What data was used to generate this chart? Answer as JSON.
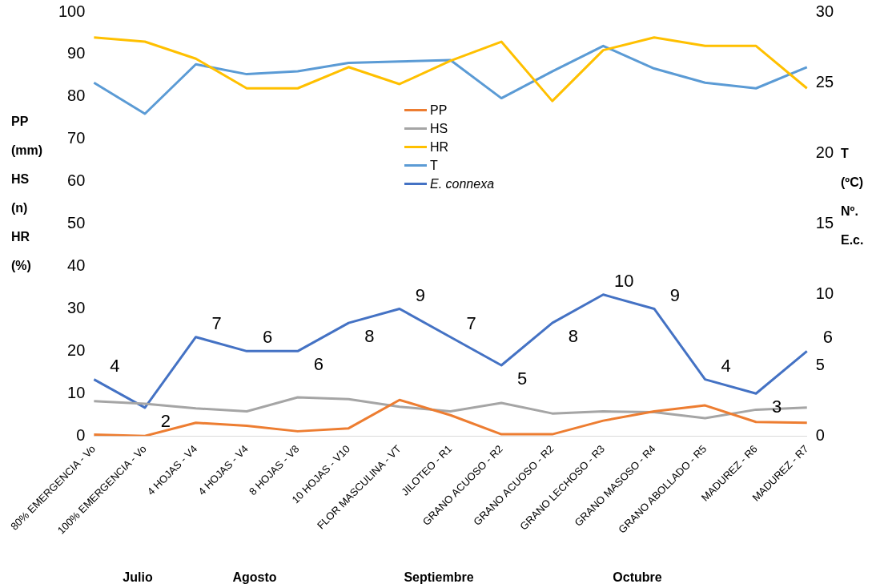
{
  "chart_data": {
    "type": "line",
    "categories": [
      "80% EMERGENCIA - Vo",
      "100% EMERGENCIA - Vo",
      "4 HOJAS - V4",
      "4 HOJAS - V4",
      "8 HOJAS - V8",
      "10 HOJAS - V10",
      "FLOR MASCULINA - VT",
      "JILOTEO - R1",
      "GRANO ACUOSO - R2",
      "GRANO ACUOSO - R2",
      "GRANO LECHOSO - R3",
      "GRANO MASOSO - R4",
      "GRANO ABOLLADO - R5",
      "MADUREZ - R6",
      "MADUREZ - R7"
    ],
    "series": [
      {
        "name": "PP",
        "color": "#ed7d31",
        "values": [
          0.3,
          0,
          3.1,
          2.4,
          1.1,
          1.8,
          8.5,
          4.9,
          0.4,
          0.4,
          3.6,
          5.8,
          7.2,
          3.3,
          3.1
        ]
      },
      {
        "name": "HS",
        "color": "#a5a5a5",
        "values": [
          8.2,
          7.6,
          6.5,
          5.8,
          9.1,
          8.7,
          6.9,
          5.8,
          7.8,
          5.3,
          5.8,
          5.6,
          4.2,
          6.2,
          6.7
        ]
      },
      {
        "name": "HR",
        "color": "#ffc000",
        "values": [
          94,
          93,
          89,
          82,
          82,
          87,
          83,
          88.5,
          93,
          79,
          91,
          94,
          92,
          92,
          82
        ]
      },
      {
        "name": "T",
        "color": "#5b9bd5",
        "axis": "y2",
        "values": [
          25.0,
          22.8,
          26.3,
          25.6,
          25.8,
          26.4,
          26.5,
          26.6,
          23.9,
          25.8,
          27.6,
          26.0,
          25.0,
          24.6,
          26.1
        ]
      },
      {
        "name": "E. connexa",
        "color": "#4472c4",
        "axis": "y2",
        "values": [
          4,
          2,
          7,
          6,
          6,
          8,
          9,
          7,
          5,
          8,
          10,
          9,
          4,
          3,
          6
        ],
        "value_labels": [
          "4",
          "2",
          "7",
          "6",
          "6",
          "8",
          "9",
          "7",
          "5",
          "8",
          "10",
          "9",
          "4",
          "3",
          "6"
        ]
      }
    ],
    "ylabel": "PP (mm) HS (n) HR (%)",
    "y2label": "T (ºC) Nº. E.c.",
    "ylim": [
      0,
      100
    ],
    "yticks": [
      0,
      10,
      20,
      30,
      40,
      50,
      60,
      70,
      80,
      90,
      100
    ],
    "y2lim": [
      0,
      30
    ],
    "y2ticks": [
      0,
      5,
      10,
      15,
      20,
      25,
      30
    ],
    "grid": false,
    "legend": "top",
    "marker": "none",
    "line_style": "solid",
    "annotations": [
      "Julio",
      "Agosto",
      "Septiembre",
      "Octubre"
    ]
  }
}
